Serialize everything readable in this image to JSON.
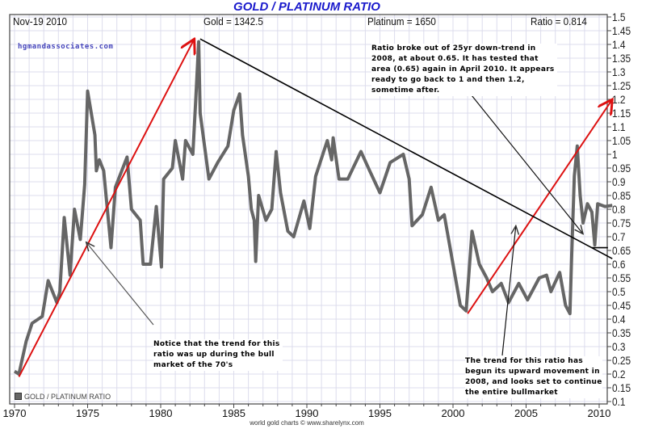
{
  "chart_data": {
    "type": "line",
    "title": "GOLD / PLATINUM RATIO",
    "header": {
      "date": "Nov-19  2010",
      "gold": "Gold = 1342.5",
      "platinum": "Platinum = 1650",
      "ratio": "Ratio = 0.814"
    },
    "watermark": "hgmandassociates.com",
    "footer": "world gold charts © www.sharelynx.com",
    "xlim": [
      1969.7,
      2010.9
    ],
    "ylim": [
      0.1,
      1.5
    ],
    "x_ticks": [
      "1970",
      "1975",
      "1980",
      "1985",
      "1990",
      "1995",
      "2000",
      "2005",
      "2010"
    ],
    "y_ticks": [
      "1.5",
      "1.45",
      "1.4",
      "1.35",
      "1.3",
      "1.25",
      "1.2",
      "1.15",
      "1.1",
      "1.05",
      "1",
      "0.95",
      "0.9",
      "0.85",
      "0.8",
      "0.75",
      "0.7",
      "0.65",
      "0.6",
      "0.55",
      "0.5",
      "0.45",
      "0.4",
      "0.35",
      "0.3",
      "0.25",
      "0.2",
      "0.15",
      "0.1"
    ],
    "y_axis_side": "right",
    "grid": true,
    "legend": {
      "label": "GOLD / PLATINUM RATIO",
      "placement": "bottom-left"
    },
    "series": [
      {
        "name": "GOLD / PLATINUM RATIO",
        "color": "#666666",
        "points": [
          [
            1970.0,
            0.21
          ],
          [
            1970.3,
            0.2
          ],
          [
            1970.8,
            0.32
          ],
          [
            1971.2,
            0.385
          ],
          [
            1971.9,
            0.41
          ],
          [
            1972.3,
            0.54
          ],
          [
            1972.9,
            0.46
          ],
          [
            1973.1,
            0.5
          ],
          [
            1973.4,
            0.77
          ],
          [
            1973.8,
            0.56
          ],
          [
            1974.1,
            0.8
          ],
          [
            1974.5,
            0.69
          ],
          [
            1974.8,
            0.89
          ],
          [
            1975.0,
            1.23
          ],
          [
            1975.5,
            1.07
          ],
          [
            1975.6,
            0.94
          ],
          [
            1975.8,
            0.98
          ],
          [
            1976.1,
            0.94
          ],
          [
            1976.6,
            0.66
          ],
          [
            1976.9,
            0.88
          ],
          [
            1977.7,
            0.99
          ],
          [
            1978.0,
            0.8
          ],
          [
            1978.6,
            0.76
          ],
          [
            1978.8,
            0.6
          ],
          [
            1979.3,
            0.6
          ],
          [
            1979.7,
            0.81
          ],
          [
            1980.05,
            0.59
          ],
          [
            1980.2,
            0.91
          ],
          [
            1980.8,
            0.95
          ],
          [
            1981.0,
            1.05
          ],
          [
            1981.5,
            0.91
          ],
          [
            1981.7,
            1.05
          ],
          [
            1982.2,
            1.0
          ],
          [
            1982.4,
            1.2
          ],
          [
            1982.6,
            1.41
          ],
          [
            1982.7,
            1.15
          ],
          [
            1983.0,
            1.03
          ],
          [
            1983.3,
            0.91
          ],
          [
            1983.9,
            0.97
          ],
          [
            1984.6,
            1.03
          ],
          [
            1985.0,
            1.16
          ],
          [
            1985.4,
            1.22
          ],
          [
            1985.6,
            1.07
          ],
          [
            1986.0,
            0.92
          ],
          [
            1986.2,
            0.8
          ],
          [
            1986.4,
            0.76
          ],
          [
            1986.5,
            0.61
          ],
          [
            1986.7,
            0.85
          ],
          [
            1987.2,
            0.76
          ],
          [
            1987.6,
            0.8
          ],
          [
            1987.9,
            1.01
          ],
          [
            1988.2,
            0.86
          ],
          [
            1988.7,
            0.72
          ],
          [
            1989.1,
            0.7
          ],
          [
            1989.8,
            0.83
          ],
          [
            1990.2,
            0.73
          ],
          [
            1990.6,
            0.92
          ],
          [
            1991.4,
            1.05
          ],
          [
            1991.7,
            0.98
          ],
          [
            1991.8,
            1.06
          ],
          [
            1992.2,
            0.91
          ],
          [
            1992.8,
            0.91
          ],
          [
            1993.7,
            1.01
          ],
          [
            1994.3,
            0.94
          ],
          [
            1995.0,
            0.86
          ],
          [
            1995.7,
            0.97
          ],
          [
            1996.6,
            1.0
          ],
          [
            1997.0,
            0.91
          ],
          [
            1997.2,
            0.74
          ],
          [
            1997.9,
            0.78
          ],
          [
            1998.5,
            0.88
          ],
          [
            1999.0,
            0.76
          ],
          [
            1999.4,
            0.78
          ],
          [
            2000.0,
            0.6
          ],
          [
            2000.5,
            0.45
          ],
          [
            2000.9,
            0.43
          ],
          [
            2001.3,
            0.72
          ],
          [
            2001.8,
            0.6
          ],
          [
            2002.3,
            0.55
          ],
          [
            2002.7,
            0.5
          ],
          [
            2003.3,
            0.53
          ],
          [
            2003.8,
            0.46
          ],
          [
            2004.5,
            0.53
          ],
          [
            2005.1,
            0.47
          ],
          [
            2005.9,
            0.55
          ],
          [
            2006.4,
            0.56
          ],
          [
            2006.7,
            0.5
          ],
          [
            2007.3,
            0.57
          ],
          [
            2007.7,
            0.45
          ],
          [
            2008.0,
            0.42
          ],
          [
            2008.1,
            0.6
          ],
          [
            2008.3,
            0.92
          ],
          [
            2008.5,
            1.03
          ],
          [
            2008.7,
            0.85
          ],
          [
            2008.9,
            0.75
          ],
          [
            2009.2,
            0.82
          ],
          [
            2009.5,
            0.79
          ],
          [
            2009.7,
            0.67
          ],
          [
            2009.9,
            0.82
          ],
          [
            2010.4,
            0.81
          ],
          [
            2010.9,
            0.814
          ]
        ]
      }
    ],
    "trendlines": [
      {
        "color": "#dd1111",
        "from": [
          1970.3,
          0.19
        ],
        "to": [
          1982.3,
          1.42
        ],
        "arrow": true
      },
      {
        "color": "#dd1111",
        "from": [
          2001.0,
          0.42
        ],
        "to": [
          2010.9,
          1.2
        ],
        "arrow": true
      },
      {
        "color": "#000000",
        "from": [
          1982.7,
          1.42
        ],
        "to": [
          2010.9,
          0.62
        ],
        "arrow": false
      },
      {
        "color": "#000000",
        "from": [
          2009.5,
          0.66
        ],
        "to": [
          2010.6,
          0.66
        ],
        "arrow": false
      }
    ],
    "annotations": [
      {
        "text": "Ratio broke out of 25yr down-trend in 2008, at about 0.65. It has tested that area (0.65) again in April 2010. It appears ready to go back to 1 and then 1.2, sometime after.",
        "points_to": [
          2008.9,
          0.71
        ]
      },
      {
        "text": "Notice that the trend for this ratio was up during the bull market of the 70's",
        "points_to": [
          1974.9,
          0.68
        ]
      },
      {
        "text": "The trend for this ratio has begun its upward movement in 2008, and looks set to continue the entire bullmarket",
        "points_to": [
          2004.3,
          0.74
        ]
      }
    ]
  }
}
